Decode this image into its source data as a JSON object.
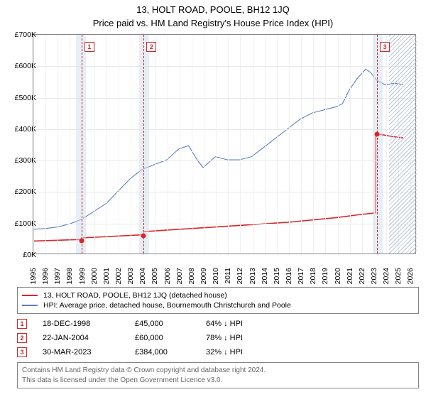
{
  "title": "13, HOLT ROAD, POOLE, BH12 1JQ",
  "subtitle": "Price paid vs. HM Land Registry's House Price Index (HPI)",
  "chart": {
    "type": "line",
    "xlim": [
      1995,
      2026.5
    ],
    "ylim": [
      0,
      700000
    ],
    "ytick_step": 100000,
    "ytick_labels": [
      "£0K",
      "£100K",
      "£200K",
      "£300K",
      "£400K",
      "£500K",
      "£600K",
      "£700K"
    ],
    "xticks": [
      1995,
      1996,
      1997,
      1998,
      1999,
      2000,
      2001,
      2002,
      2003,
      2004,
      2005,
      2006,
      2007,
      2008,
      2009,
      2010,
      2011,
      2012,
      2013,
      2014,
      2015,
      2016,
      2017,
      2018,
      2019,
      2020,
      2021,
      2022,
      2023,
      2024,
      2025,
      2026
    ],
    "background_color": "#ffffff",
    "grid_color": "#e8e8e8",
    "border_color": "#848484",
    "shaded_bands": [
      {
        "from": 1998.5,
        "to": 1999.3,
        "color": "rgba(210,222,236,0.5)"
      },
      {
        "from": 2003.7,
        "to": 2004.5,
        "color": "rgba(210,222,236,0.5)"
      },
      {
        "from": 2022.9,
        "to": 2023.7,
        "color": "rgba(210,222,236,0.5)"
      }
    ],
    "future_hatch": {
      "from": 2024.2,
      "to": 2026.5
    },
    "markers": [
      {
        "n": "1",
        "x": 1998.96,
        "y": 45000,
        "color": "#d62728"
      },
      {
        "n": "2",
        "x": 2004.06,
        "y": 60000,
        "color": "#d62728"
      },
      {
        "n": "3",
        "x": 2023.24,
        "y": 384000,
        "color": "#d62728"
      }
    ],
    "series": [
      {
        "name": "price_paid",
        "label": "13, HOLT ROAD, POOLE, BH12 1JQ (detached house)",
        "color": "#d62728",
        "width": 1.6,
        "points": [
          [
            1995,
            40000
          ],
          [
            1998.96,
            45000
          ],
          [
            1998.97,
            50000
          ],
          [
            2004.06,
            60000
          ],
          [
            2004.07,
            70000
          ],
          [
            2008,
            80000
          ],
          [
            2012,
            90000
          ],
          [
            2016,
            100000
          ],
          [
            2020,
            115000
          ],
          [
            2022,
            125000
          ],
          [
            2023.23,
            130000
          ],
          [
            2023.24,
            384000
          ],
          [
            2024.5,
            375000
          ],
          [
            2025.5,
            370000
          ]
        ]
      },
      {
        "name": "hpi",
        "label": "HPI: Average price, detached house, Bournemouth Christchurch and Poole",
        "color": "#5b7fbf",
        "width": 1.1,
        "points": [
          [
            1995,
            78000
          ],
          [
            1996,
            80000
          ],
          [
            1997,
            85000
          ],
          [
            1998,
            95000
          ],
          [
            1999,
            110000
          ],
          [
            2000,
            135000
          ],
          [
            2001,
            160000
          ],
          [
            2002,
            200000
          ],
          [
            2003,
            240000
          ],
          [
            2004,
            270000
          ],
          [
            2005,
            285000
          ],
          [
            2006,
            300000
          ],
          [
            2007,
            335000
          ],
          [
            2007.8,
            345000
          ],
          [
            2008.5,
            300000
          ],
          [
            2009,
            275000
          ],
          [
            2010,
            310000
          ],
          [
            2011,
            300000
          ],
          [
            2012,
            300000
          ],
          [
            2013,
            310000
          ],
          [
            2014,
            340000
          ],
          [
            2015,
            370000
          ],
          [
            2016,
            400000
          ],
          [
            2017,
            430000
          ],
          [
            2018,
            450000
          ],
          [
            2019,
            460000
          ],
          [
            2020,
            470000
          ],
          [
            2020.5,
            480000
          ],
          [
            2021,
            520000
          ],
          [
            2021.7,
            560000
          ],
          [
            2022.4,
            590000
          ],
          [
            2022.8,
            580000
          ],
          [
            2023.3,
            555000
          ],
          [
            2024,
            540000
          ],
          [
            2024.8,
            545000
          ],
          [
            2025.5,
            540000
          ]
        ]
      }
    ]
  },
  "legend": [
    {
      "color": "#d62728",
      "label": "13, HOLT ROAD, POOLE, BH12 1JQ (detached house)",
      "width": 2
    },
    {
      "color": "#5b7fbf",
      "label": "HPI: Average price, detached house, Bournemouth Christchurch and Poole",
      "width": 1.2
    }
  ],
  "sales": [
    {
      "n": "1",
      "color": "#d62728",
      "date": "18-DEC-1998",
      "price": "£45,000",
      "pct": "64% ↓ HPI"
    },
    {
      "n": "2",
      "color": "#d62728",
      "date": "22-JAN-2004",
      "price": "£60,000",
      "pct": "78% ↓ HPI"
    },
    {
      "n": "3",
      "color": "#d62728",
      "date": "30-MAR-2023",
      "price": "£384,000",
      "pct": "32% ↓ HPI"
    }
  ],
  "attribution": {
    "line1": "Contains HM Land Registry data © Crown copyright and database right 2024.",
    "line2": "This data is licensed under the Open Government Licence v3.0."
  }
}
